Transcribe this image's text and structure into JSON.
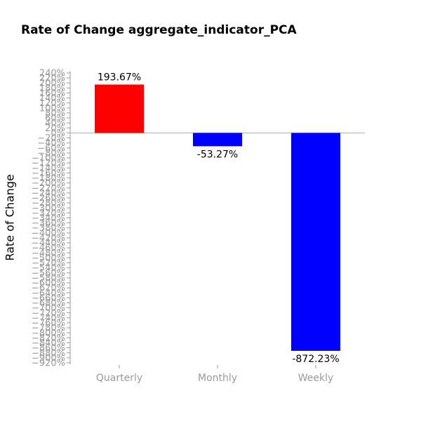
{
  "chart_data": {
    "type": "bar",
    "title": "Rate of Change aggregate_indicator_PCA",
    "xlabel": "",
    "ylabel": "Rate of Change",
    "categories": [
      "Quarterly",
      "Monthly",
      "Weekly"
    ],
    "values": [
      193.67,
      -53.27,
      -872.23
    ],
    "value_labels": [
      "193.67%",
      "-53.27%",
      "-872.23%"
    ],
    "bar_colors": [
      "#ff0000",
      "#0000ff",
      "#0000ff"
    ],
    "ylim": [
      -920,
      240
    ],
    "ytick_step": 20,
    "ytick_suffix": "%",
    "grid": false,
    "zero_line": true,
    "legend": "none"
  },
  "colors": {
    "positive": "#ff0000",
    "negative": "#0000ff",
    "axis": "#9a9a9a",
    "zero_line": "#b0b0b0"
  }
}
